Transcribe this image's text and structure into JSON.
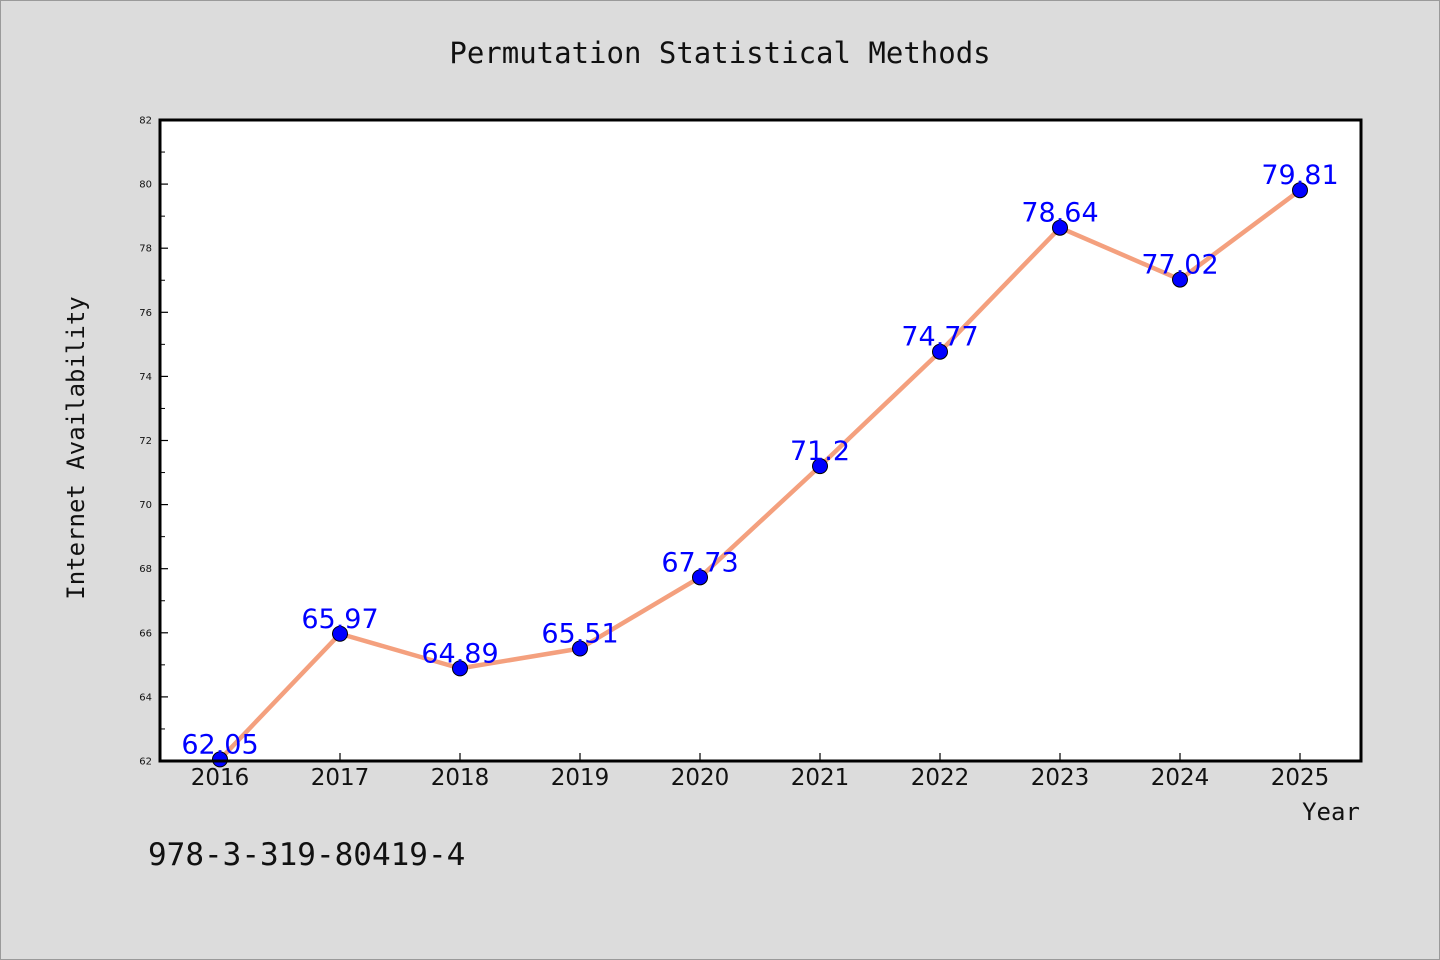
{
  "chart_data": {
    "type": "line",
    "title": "Permutation Statistical Methods",
    "xlabel": "Year",
    "ylabel": "Internet Availability",
    "x": [
      "2016",
      "2017",
      "2018",
      "2019",
      "2020",
      "2021",
      "2022",
      "2023",
      "2024",
      "2025"
    ],
    "series": [
      {
        "values": [
          62.05,
          65.97,
          64.89,
          65.51,
          67.73,
          71.2,
          74.77,
          78.64,
          77.02,
          79.81
        ],
        "labels": [
          "62.05",
          "65.97",
          "64.89",
          "65.51",
          "67.73",
          "71.2",
          "74.77",
          "78.64",
          "77.02",
          "79.81"
        ]
      }
    ],
    "ylim": [
      62,
      82
    ],
    "yticks": [
      62,
      64,
      66,
      68,
      70,
      72,
      74,
      76,
      78,
      80,
      82
    ],
    "grid": false,
    "line_color": "#f4a07e",
    "marker_color": "#0000ff",
    "label_color": "#0000ff",
    "background_color": "#dcdcdc",
    "plot_background_color": "#ffffff"
  },
  "footer": {
    "isbn": "978-3-319-80419-4"
  }
}
